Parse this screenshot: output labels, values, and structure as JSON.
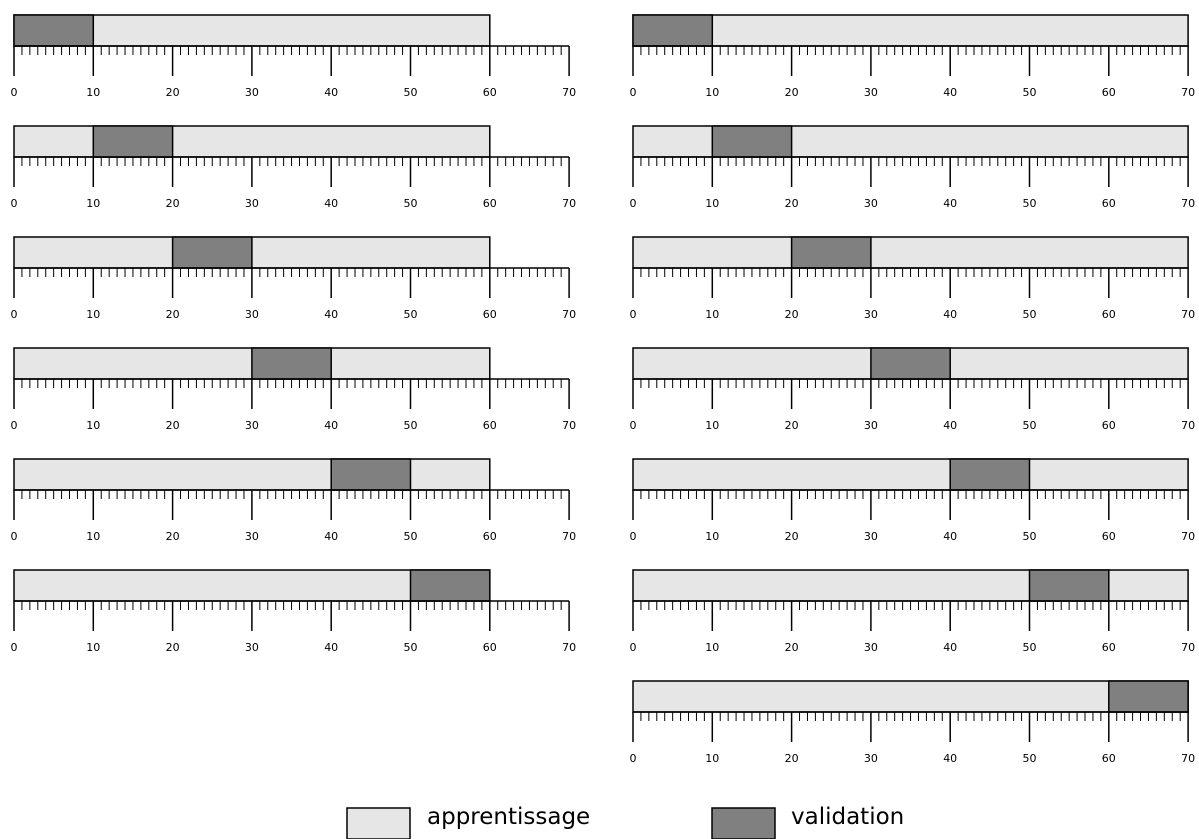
{
  "legend": {
    "learning_label": "apprentissage",
    "validation_label": "validation"
  },
  "colors": {
    "learning": "#e6e6e6",
    "validation": "#808080",
    "stroke": "#000000"
  },
  "scale": {
    "min": 0,
    "max": 70,
    "major_step": 10,
    "minor_step": 1,
    "tick_labels": [
      "0",
      "10",
      "20",
      "30",
      "40",
      "50",
      "60",
      "70"
    ]
  },
  "diagram_data": {
    "type": "cross-validation-folds",
    "columns": [
      {
        "total": 60,
        "folds": [
          {
            "validation": [
              0,
              10
            ]
          },
          {
            "validation": [
              10,
              20
            ]
          },
          {
            "validation": [
              20,
              30
            ]
          },
          {
            "validation": [
              30,
              40
            ]
          },
          {
            "validation": [
              40,
              50
            ]
          },
          {
            "validation": [
              50,
              60
            ]
          }
        ]
      },
      {
        "total": 70,
        "folds": [
          {
            "validation": [
              0,
              10
            ]
          },
          {
            "validation": [
              10,
              20
            ]
          },
          {
            "validation": [
              20,
              30
            ]
          },
          {
            "validation": [
              30,
              40
            ]
          },
          {
            "validation": [
              40,
              50
            ]
          },
          {
            "validation": [
              50,
              60
            ]
          },
          {
            "validation": [
              60,
              70
            ]
          }
        ]
      }
    ]
  }
}
